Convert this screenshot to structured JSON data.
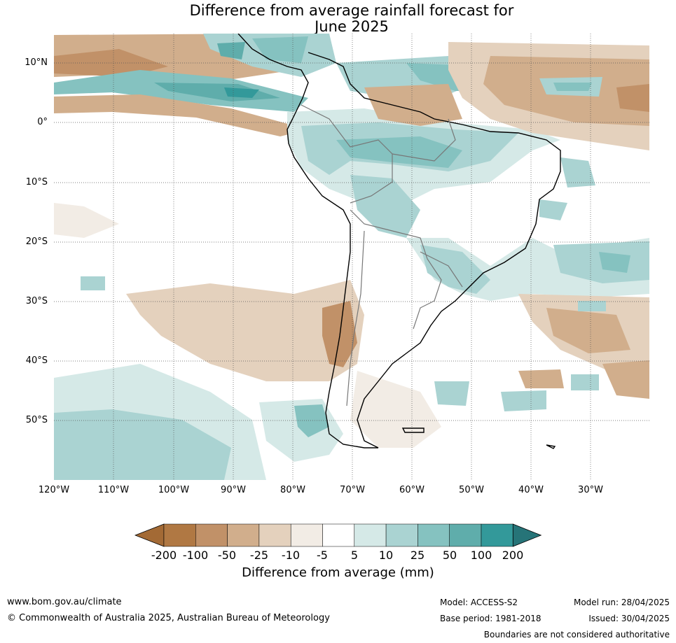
{
  "title_line1": "Difference from average rainfall forecast for",
  "title_line2": "June 2025",
  "latitude_labels": [
    "10°N",
    "0°",
    "10°S",
    "20°S",
    "30°S",
    "40°S",
    "50°S"
  ],
  "longitude_labels": [
    "120°W",
    "110°W",
    "100°W",
    "90°W",
    "80°W",
    "70°W",
    "60°W",
    "50°W",
    "40°W",
    "30°W"
  ],
  "legend": {
    "title": "Difference from average (mm)",
    "ticks": [
      "-200",
      "-100",
      "-50",
      "-25",
      "-10",
      "-5",
      "5",
      "10",
      "25",
      "50",
      "100",
      "200"
    ],
    "colors": [
      "#a36a35",
      "#b07843",
      "#c19168",
      "#d1ae8c",
      "#e4d1bd",
      "#f2ece5",
      "#ffffff",
      "#d5e9e7",
      "#aad3d2",
      "#85c2c0",
      "#5fadab",
      "#33999a",
      "#267478"
    ]
  },
  "footer": {
    "website": "www.bom.gov.au/climate",
    "copyright": "© Commonwealth of Australia 2025, Australian Bureau of Meteorology",
    "model": "Model: ACCESS-S2",
    "base_period": "Base period: 1981-2018",
    "model_run": "Model run: 28/04/2025",
    "issued": "Issued: 30/04/2025",
    "disclaimer": "Boundaries are not considered authoritative"
  }
}
